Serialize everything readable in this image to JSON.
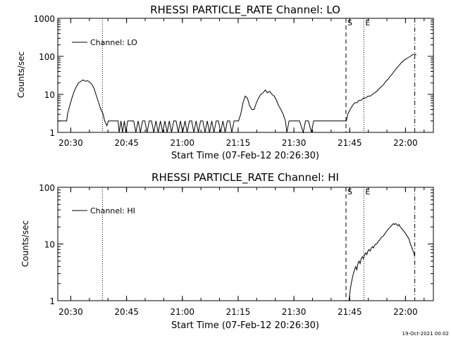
{
  "footer": {
    "date": "19-Oct-2021 00:02"
  },
  "chart_data": [
    {
      "type": "line",
      "title": "RHESSI PARTICLE_RATE Channel: LO",
      "xlabel": "Start Time (07-Feb-12 20:26:30)",
      "ylabel": "Counts/sec",
      "xticks": [
        "20:30",
        "20:45",
        "21:00",
        "21:15",
        "21:30",
        "21:45",
        "22:00"
      ],
      "yticks": [
        "1",
        "10",
        "100",
        "1000"
      ],
      "y_scale": "log",
      "ylim": [
        1,
        1000
      ],
      "xlim_minutes_after_start": [
        0,
        101
      ],
      "legend": {
        "label": "Channel: LO",
        "position": "top-left"
      },
      "markers": [
        {
          "label": "S",
          "style": "dashed",
          "t": 77.5
        },
        {
          "label": "E",
          "style": "dotted",
          "t": 82.3
        },
        {
          "label": "",
          "style": "dotted",
          "t": 12.0
        },
        {
          "label": "",
          "style": "dashdot",
          "t": 96.0
        }
      ],
      "series": [
        {
          "name": "Channel: LO",
          "points": [
            [
              0,
              2
            ],
            [
              0.8,
              2
            ],
            [
              1.6,
              2
            ],
            [
              2.4,
              2
            ],
            [
              2.6,
              3
            ],
            [
              3.2,
              5
            ],
            [
              3.8,
              8
            ],
            [
              4.4,
              12
            ],
            [
              5,
              16
            ],
            [
              5.6,
              20
            ],
            [
              6.2,
              22
            ],
            [
              6.8,
              24
            ],
            [
              7.4,
              22
            ],
            [
              8,
              23
            ],
            [
              8.6,
              21
            ],
            [
              9.2,
              18
            ],
            [
              9.8,
              14
            ],
            [
              10.4,
              9
            ],
            [
              11,
              6
            ],
            [
              11.6,
              4
            ],
            [
              12.2,
              3
            ],
            [
              12.6,
              2
            ],
            [
              13.2,
              1.5
            ],
            [
              13.6,
              2
            ],
            [
              14.4,
              2
            ],
            [
              15,
              2
            ],
            [
              15.6,
              2
            ],
            [
              16.2,
              2
            ],
            [
              16.5,
              1
            ],
            [
              17,
              2
            ],
            [
              17.4,
              1
            ],
            [
              17.9,
              2
            ],
            [
              18.3,
              1
            ],
            [
              18.8,
              2
            ],
            [
              19.2,
              2
            ],
            [
              19.8,
              2
            ],
            [
              20.4,
              2
            ],
            [
              21,
              1
            ],
            [
              21.6,
              2
            ],
            [
              22.2,
              1
            ],
            [
              22.8,
              2
            ],
            [
              23.4,
              2
            ],
            [
              24,
              1
            ],
            [
              24.6,
              2
            ],
            [
              25.2,
              2
            ],
            [
              25.8,
              1
            ],
            [
              26.4,
              2
            ],
            [
              27,
              1
            ],
            [
              27.6,
              2
            ],
            [
              28.2,
              1
            ],
            [
              28.8,
              2
            ],
            [
              29.4,
              1
            ],
            [
              30,
              2
            ],
            [
              30.6,
              1
            ],
            [
              31.2,
              2
            ],
            [
              31.8,
              2
            ],
            [
              32.4,
              1
            ],
            [
              33,
              2
            ],
            [
              33.6,
              1
            ],
            [
              34.2,
              2
            ],
            [
              34.8,
              1
            ],
            [
              35.4,
              2
            ],
            [
              36,
              2
            ],
            [
              36.6,
              1
            ],
            [
              37.2,
              2
            ],
            [
              37.8,
              1
            ],
            [
              38.4,
              2
            ],
            [
              39,
              2
            ],
            [
              39.6,
              1
            ],
            [
              40.2,
              2
            ],
            [
              40.8,
              1
            ],
            [
              41.4,
              2
            ],
            [
              42,
              1
            ],
            [
              42.6,
              2
            ],
            [
              43.2,
              2
            ],
            [
              43.8,
              1
            ],
            [
              44.4,
              2
            ],
            [
              45,
              1
            ],
            [
              45.6,
              2
            ],
            [
              46.2,
              2
            ],
            [
              46.8,
              1
            ],
            [
              47.4,
              2
            ],
            [
              48,
              2
            ],
            [
              48.6,
              2
            ],
            [
              49.2,
              3
            ],
            [
              49.8,
              6
            ],
            [
              50.4,
              9
            ],
            [
              51,
              8
            ],
            [
              51.6,
              5
            ],
            [
              52.2,
              4
            ],
            [
              52.8,
              4
            ],
            [
              53.4,
              6
            ],
            [
              54,
              8
            ],
            [
              54.6,
              10
            ],
            [
              55.2,
              11
            ],
            [
              55.8,
              13
            ],
            [
              56.4,
              11
            ],
            [
              57,
              12
            ],
            [
              57.6,
              10
            ],
            [
              58.2,
              9
            ],
            [
              58.8,
              7
            ],
            [
              59.4,
              5
            ],
            [
              60,
              4
            ],
            [
              60.6,
              3
            ],
            [
              61.2,
              2
            ],
            [
              61.6,
              1
            ],
            [
              62.2,
              2
            ],
            [
              63,
              2
            ],
            [
              64,
              2
            ],
            [
              65,
              2
            ],
            [
              66,
              1
            ],
            [
              66.6,
              2
            ],
            [
              67.4,
              2
            ],
            [
              68.2,
              1
            ],
            [
              68.8,
              2
            ],
            [
              69.6,
              2
            ],
            [
              70.4,
              2
            ],
            [
              71.2,
              2
            ],
            [
              72,
              2
            ],
            [
              72.8,
              2
            ],
            [
              73.4,
              2
            ],
            [
              74,
              2
            ],
            [
              74.6,
              2
            ],
            [
              75.2,
              2
            ],
            [
              75.8,
              2
            ],
            [
              76.4,
              2
            ],
            [
              77,
              2
            ],
            [
              77.6,
              2
            ],
            [
              78,
              3
            ],
            [
              78.6,
              4
            ],
            [
              79.2,
              5
            ],
            [
              79.8,
              6
            ],
            [
              80.4,
              6
            ],
            [
              81,
              7
            ],
            [
              81.6,
              7
            ],
            [
              82.2,
              8
            ],
            [
              82.8,
              8
            ],
            [
              83.4,
              9
            ],
            [
              84,
              9
            ],
            [
              84.6,
              10
            ],
            [
              85.2,
              11
            ],
            [
              85.8,
              12
            ],
            [
              86.4,
              14
            ],
            [
              87,
              16
            ],
            [
              87.6,
              18
            ],
            [
              88.2,
              22
            ],
            [
              88.8,
              25
            ],
            [
              89.4,
              30
            ],
            [
              90,
              35
            ],
            [
              90.6,
              42
            ],
            [
              91.2,
              50
            ],
            [
              91.8,
              58
            ],
            [
              92.4,
              68
            ],
            [
              93,
              78
            ],
            [
              93.6,
              85
            ],
            [
              94.2,
              92
            ],
            [
              94.8,
              100
            ],
            [
              95.4,
              110
            ],
            [
              96,
              115
            ],
            [
              96.4,
              108
            ]
          ]
        }
      ]
    },
    {
      "type": "line",
      "title": "RHESSI PARTICLE_RATE Channel: HI",
      "xlabel": "Start Time (07-Feb-12 20:26:30)",
      "ylabel": "Counts/sec",
      "xticks": [
        "20:30",
        "20:45",
        "21:00",
        "21:15",
        "21:30",
        "21:45",
        "22:00"
      ],
      "yticks": [
        "1",
        "10",
        "100"
      ],
      "y_scale": "log",
      "ylim": [
        1,
        100
      ],
      "xlim_minutes_after_start": [
        0,
        101
      ],
      "legend": {
        "label": "Channel: HI",
        "position": "top-left"
      },
      "markers": [
        {
          "label": "S",
          "style": "dashed",
          "t": 77.5
        },
        {
          "label": "E",
          "style": "dotted",
          "t": 82.3
        },
        {
          "label": "",
          "style": "dotted",
          "t": 12.0
        },
        {
          "label": "",
          "style": "dashdot",
          "t": 96.0
        }
      ],
      "series": [
        {
          "name": "Channel: HI",
          "points": [
            [
              78.3,
              1
            ],
            [
              78.6,
              1.5
            ],
            [
              78.9,
              2
            ],
            [
              79.2,
              2.5
            ],
            [
              79.5,
              3
            ],
            [
              79.8,
              3.5
            ],
            [
              80.1,
              4
            ],
            [
              80.4,
              3.5
            ],
            [
              80.7,
              4.5
            ],
            [
              81,
              5
            ],
            [
              81.3,
              4.5
            ],
            [
              81.6,
              5.5
            ],
            [
              81.9,
              6
            ],
            [
              82.2,
              5.5
            ],
            [
              82.5,
              6.5
            ],
            [
              82.8,
              7
            ],
            [
              83.1,
              6.5
            ],
            [
              83.4,
              7.5
            ],
            [
              83.7,
              8
            ],
            [
              84,
              7.5
            ],
            [
              84.3,
              8.5
            ],
            [
              84.6,
              9
            ],
            [
              84.9,
              8.5
            ],
            [
              85.2,
              9.5
            ],
            [
              85.5,
              10
            ],
            [
              85.8,
              10
            ],
            [
              86.1,
              11
            ],
            [
              86.4,
              11.5
            ],
            [
              86.7,
              12
            ],
            [
              87,
              13
            ],
            [
              87.3,
              13.5
            ],
            [
              87.6,
              14
            ],
            [
              87.9,
              15
            ],
            [
              88.2,
              16
            ],
            [
              88.5,
              17
            ],
            [
              88.8,
              18
            ],
            [
              89.1,
              19
            ],
            [
              89.4,
              20
            ],
            [
              89.7,
              21
            ],
            [
              90,
              22
            ],
            [
              90.3,
              23
            ],
            [
              90.6,
              22
            ],
            [
              90.9,
              23
            ],
            [
              91.2,
              22
            ],
            [
              91.5,
              21
            ],
            [
              91.8,
              22
            ],
            [
              92.1,
              20
            ],
            [
              92.4,
              19
            ],
            [
              92.7,
              18
            ],
            [
              93,
              17
            ],
            [
              93.3,
              16
            ],
            [
              93.6,
              15
            ],
            [
              93.9,
              14
            ],
            [
              94.2,
              13
            ],
            [
              94.5,
              12
            ],
            [
              94.8,
              10
            ],
            [
              95.1,
              9
            ],
            [
              95.4,
              8
            ],
            [
              95.7,
              7
            ],
            [
              96,
              6
            ]
          ]
        }
      ]
    }
  ]
}
